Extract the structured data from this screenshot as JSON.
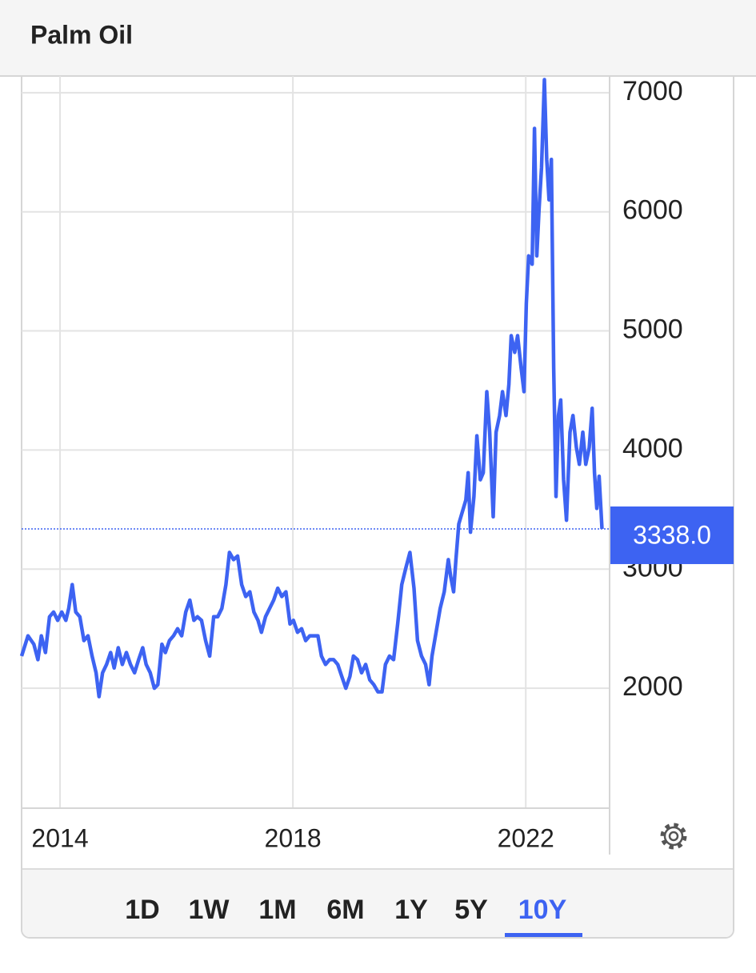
{
  "header": {
    "title": "Palm Oil"
  },
  "chart_data": {
    "type": "line",
    "x": [
      2013.34,
      2013.45,
      2013.55,
      2013.62,
      2013.68,
      2013.75,
      2013.82,
      2013.89,
      2013.96,
      2014.03,
      2014.1,
      2014.15,
      2014.21,
      2014.27,
      2014.34,
      2014.41,
      2014.48,
      2014.55,
      2014.62,
      2014.67,
      2014.73,
      2014.8,
      2014.87,
      2014.93,
      2015.0,
      2015.07,
      2015.14,
      2015.21,
      2015.28,
      2015.35,
      2015.42,
      2015.48,
      2015.55,
      2015.62,
      2015.68,
      2015.75,
      2015.81,
      2015.88,
      2015.95,
      2016.02,
      2016.09,
      2016.16,
      2016.23,
      2016.3,
      2016.36,
      2016.43,
      2016.5,
      2016.57,
      2016.64,
      2016.71,
      2016.78,
      2016.85,
      2016.91,
      2016.98,
      2017.05,
      2017.12,
      2017.19,
      2017.26,
      2017.33,
      2017.4,
      2017.46,
      2017.53,
      2017.6,
      2017.67,
      2017.74,
      2017.81,
      2017.88,
      2017.95,
      2018.01,
      2018.08,
      2018.15,
      2018.22,
      2018.29,
      2018.36,
      2018.43,
      2018.49,
      2018.56,
      2018.63,
      2018.7,
      2018.77,
      2018.84,
      2018.91,
      2018.98,
      2019.04,
      2019.11,
      2019.18,
      2019.25,
      2019.32,
      2019.39,
      2019.46,
      2019.53,
      2019.59,
      2019.66,
      2019.73,
      2019.8,
      2019.87,
      2019.94,
      2020.01,
      2020.08,
      2020.14,
      2020.21,
      2020.28,
      2020.34,
      2020.39,
      2020.46,
      2020.53,
      2020.6,
      2020.67,
      2020.71,
      2020.76,
      2020.8,
      2020.85,
      2020.91,
      2020.97,
      2021.01,
      2021.05,
      2021.11,
      2021.16,
      2021.22,
      2021.27,
      2021.33,
      2021.38,
      2021.44,
      2021.49,
      2021.55,
      2021.6,
      2021.66,
      2021.71,
      2021.75,
      2021.81,
      2021.86,
      2021.92,
      2021.97,
      2022.01,
      2022.05,
      2022.11,
      2022.15,
      2022.19,
      2022.23,
      2022.27,
      2022.32,
      2022.36,
      2022.4,
      2022.44,
      2022.48,
      2022.52,
      2022.56,
      2022.6,
      2022.65,
      2022.7,
      2022.76,
      2022.81,
      2022.87,
      2022.92,
      2022.98,
      2023.03,
      2023.09,
      2023.14,
      2023.18,
      2023.22,
      2023.26,
      2023.31
    ],
    "series": [
      {
        "name": "Palm Oil",
        "color": "#3d63f2",
        "values": [
          2270,
          2440,
          2370,
          2240,
          2440,
          2300,
          2600,
          2640,
          2570,
          2640,
          2570,
          2670,
          2870,
          2640,
          2600,
          2400,
          2440,
          2270,
          2130,
          1930,
          2130,
          2200,
          2300,
          2170,
          2340,
          2200,
          2300,
          2200,
          2130,
          2240,
          2340,
          2200,
          2130,
          2000,
          2030,
          2370,
          2300,
          2400,
          2440,
          2500,
          2440,
          2640,
          2740,
          2570,
          2600,
          2570,
          2400,
          2270,
          2600,
          2600,
          2670,
          2870,
          3140,
          3080,
          3110,
          2870,
          2770,
          2810,
          2640,
          2570,
          2470,
          2600,
          2670,
          2740,
          2840,
          2770,
          2810,
          2540,
          2570,
          2470,
          2500,
          2400,
          2440,
          2440,
          2440,
          2270,
          2200,
          2240,
          2240,
          2200,
          2100,
          2000,
          2100,
          2270,
          2240,
          2130,
          2200,
          2070,
          2030,
          1970,
          1970,
          2200,
          2270,
          2240,
          2540,
          2870,
          3010,
          3140,
          2840,
          2400,
          2270,
          2200,
          2030,
          2270,
          2470,
          2670,
          2810,
          3080,
          2940,
          2810,
          3080,
          3380,
          3480,
          3580,
          3810,
          3310,
          3610,
          4120,
          3750,
          3810,
          4490,
          4150,
          3440,
          4150,
          4290,
          4490,
          4290,
          4550,
          4960,
          4820,
          4960,
          4690,
          4490,
          5230,
          5630,
          5560,
          6700,
          5630,
          6030,
          6370,
          7110,
          6440,
          6100,
          6440,
          4690,
          3610,
          4290,
          4420,
          3750,
          3410,
          4150,
          4290,
          4020,
          3880,
          4150,
          3880,
          4020,
          4350,
          3810,
          3510,
          3780,
          3338
        ]
      }
    ],
    "last_price": {
      "value": 3338,
      "label": "3338.0"
    },
    "xlim": [
      2013.34,
      2023.44
    ],
    "xticks": [
      2014,
      2018,
      2022
    ],
    "ylim": [
      1000,
      7140
    ],
    "yticks": [
      2000,
      3000,
      4000,
      5000,
      6000,
      7000
    ],
    "grid": true
  },
  "range_buttons": [
    {
      "label": "1D"
    },
    {
      "label": "1W"
    },
    {
      "label": "1M"
    },
    {
      "label": "6M"
    },
    {
      "label": "1Y"
    },
    {
      "label": "5Y"
    },
    {
      "label": "10Y",
      "active": true
    }
  ]
}
